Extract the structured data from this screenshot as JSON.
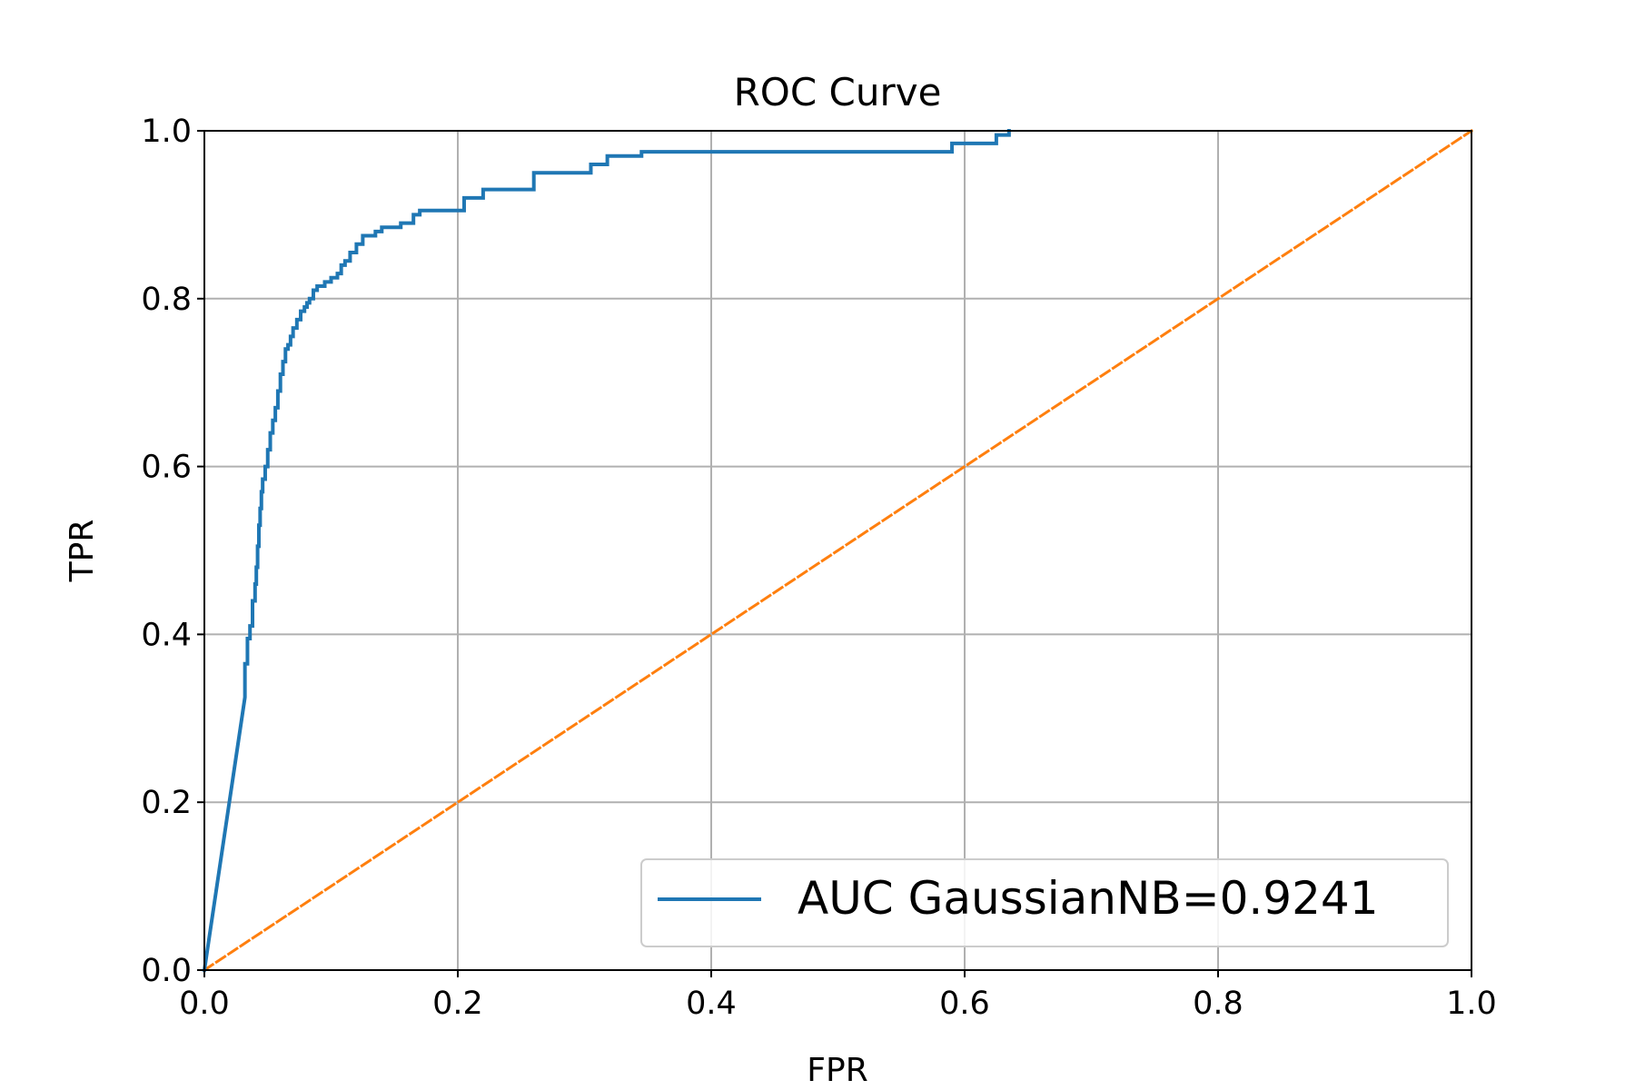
{
  "chart_data": {
    "type": "line",
    "title": "ROC Curve",
    "xlabel": "FPR",
    "ylabel": "TPR",
    "xlim": [
      0.0,
      1.0
    ],
    "ylim": [
      0.0,
      1.0
    ],
    "xticks": [
      "0.0",
      "0.2",
      "0.4",
      "0.6",
      "0.8",
      "1.0"
    ],
    "yticks": [
      "0.0",
      "0.2",
      "0.4",
      "0.6",
      "0.8",
      "1.0"
    ],
    "grid": true,
    "legend_position": "lower-right",
    "series": [
      {
        "name": "AUC GaussianNB=0.9241",
        "color": "#1f77b4",
        "style": "solid",
        "x": [
          0.0,
          0.032,
          0.032,
          0.034,
          0.034,
          0.036,
          0.036,
          0.038,
          0.038,
          0.04,
          0.04,
          0.041,
          0.041,
          0.042,
          0.042,
          0.043,
          0.043,
          0.044,
          0.044,
          0.045,
          0.045,
          0.046,
          0.046,
          0.048,
          0.048,
          0.05,
          0.05,
          0.052,
          0.052,
          0.054,
          0.054,
          0.056,
          0.056,
          0.058,
          0.058,
          0.06,
          0.06,
          0.062,
          0.062,
          0.064,
          0.064,
          0.066,
          0.066,
          0.068,
          0.068,
          0.07,
          0.07,
          0.073,
          0.073,
          0.076,
          0.076,
          0.079,
          0.079,
          0.081,
          0.081,
          0.083,
          0.083,
          0.086,
          0.086,
          0.089,
          0.089,
          0.092,
          0.092,
          0.095,
          0.095,
          0.1,
          0.1,
          0.105,
          0.105,
          0.108,
          0.108,
          0.111,
          0.111,
          0.115,
          0.115,
          0.12,
          0.12,
          0.125,
          0.125,
          0.135,
          0.135,
          0.14,
          0.14,
          0.155,
          0.155,
          0.165,
          0.165,
          0.17,
          0.17,
          0.205,
          0.205,
          0.22,
          0.22,
          0.26,
          0.26,
          0.305,
          0.305,
          0.318,
          0.318,
          0.345,
          0.345,
          0.59,
          0.59,
          0.625,
          0.625,
          0.635,
          0.635
        ],
        "y": [
          0.0,
          0.325,
          0.365,
          0.365,
          0.395,
          0.395,
          0.41,
          0.41,
          0.44,
          0.44,
          0.46,
          0.46,
          0.48,
          0.48,
          0.505,
          0.505,
          0.53,
          0.53,
          0.55,
          0.55,
          0.57,
          0.57,
          0.585,
          0.585,
          0.6,
          0.6,
          0.62,
          0.62,
          0.64,
          0.64,
          0.655,
          0.655,
          0.67,
          0.67,
          0.69,
          0.69,
          0.71,
          0.71,
          0.725,
          0.725,
          0.74,
          0.74,
          0.745,
          0.745,
          0.755,
          0.755,
          0.765,
          0.765,
          0.775,
          0.775,
          0.785,
          0.785,
          0.79,
          0.79,
          0.795,
          0.795,
          0.8,
          0.8,
          0.81,
          0.81,
          0.815,
          0.815,
          0.815,
          0.815,
          0.82,
          0.82,
          0.825,
          0.825,
          0.83,
          0.83,
          0.84,
          0.84,
          0.845,
          0.845,
          0.855,
          0.855,
          0.865,
          0.865,
          0.875,
          0.875,
          0.88,
          0.88,
          0.885,
          0.885,
          0.89,
          0.89,
          0.9,
          0.9,
          0.905,
          0.905,
          0.92,
          0.92,
          0.93,
          0.93,
          0.95,
          0.95,
          0.96,
          0.96,
          0.97,
          0.97,
          0.975,
          0.975,
          0.985,
          0.985,
          0.995,
          0.995,
          1.0
        ]
      },
      {
        "color": "#ff7f0e",
        "style": "dashed",
        "x": [
          0.0,
          1.0
        ],
        "y": [
          0.0,
          1.0
        ]
      }
    ]
  }
}
